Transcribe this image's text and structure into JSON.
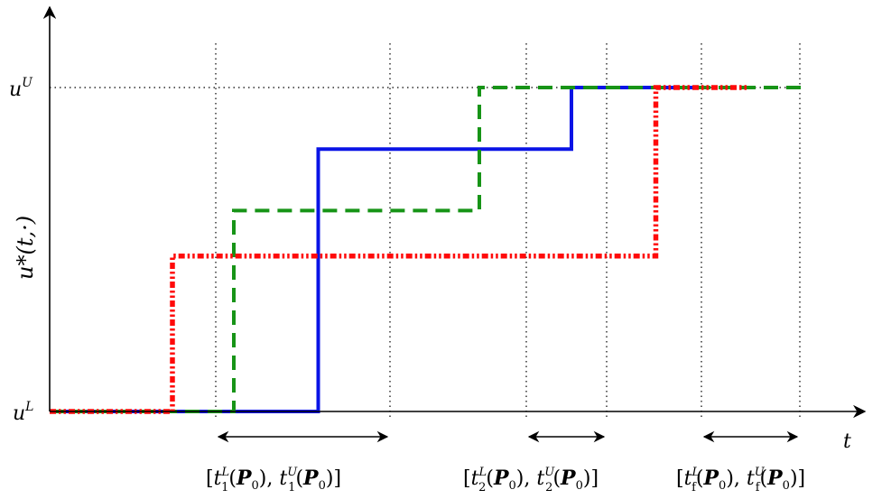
{
  "chart_data": {
    "type": "line",
    "description_free": true,
    "x_axis_symbol": "t",
    "y_axis_label": "u*(t,·)",
    "y_ticks": {
      "lower": "L",
      "upper": "U",
      "base": "u"
    },
    "interval_labels": [
      {
        "sub": "1",
        "text": "[t₁ᴸ(P₀), t₁ᵁ(P₀)]"
      },
      {
        "sub": "2",
        "text": "[t₂ᴸ(P₀), t₂ᵁ(P₀)]"
      },
      {
        "sub": "f",
        "text": "[t_fᴸ(P₀), t_fᵁ(P₀)]"
      }
    ],
    "colors": {
      "solid": "#0a14e6",
      "dashed": "#179417",
      "dashdot": "#ff0a0a",
      "axis": "#000000"
    },
    "series": [
      {
        "style": "solid",
        "points": [
          [
            0,
            0
          ],
          [
            3.5,
            0
          ],
          [
            3.5,
            0.81
          ],
          [
            6.8,
            0.81
          ],
          [
            6.8,
            1
          ],
          [
            8.5,
            1
          ]
        ]
      },
      {
        "style": "dashed",
        "points": [
          [
            0,
            0
          ],
          [
            2.4,
            0
          ],
          [
            2.4,
            0.62
          ],
          [
            5.6,
            0.62
          ],
          [
            5.6,
            1
          ],
          [
            9.8,
            1
          ]
        ]
      },
      {
        "style": "dashdot",
        "points": [
          [
            0,
            0
          ],
          [
            1.6,
            0
          ],
          [
            1.6,
            0.48
          ],
          [
            7.9,
            0.48
          ],
          [
            7.9,
            1
          ],
          [
            9.1,
            1
          ]
        ]
      }
    ]
  }
}
